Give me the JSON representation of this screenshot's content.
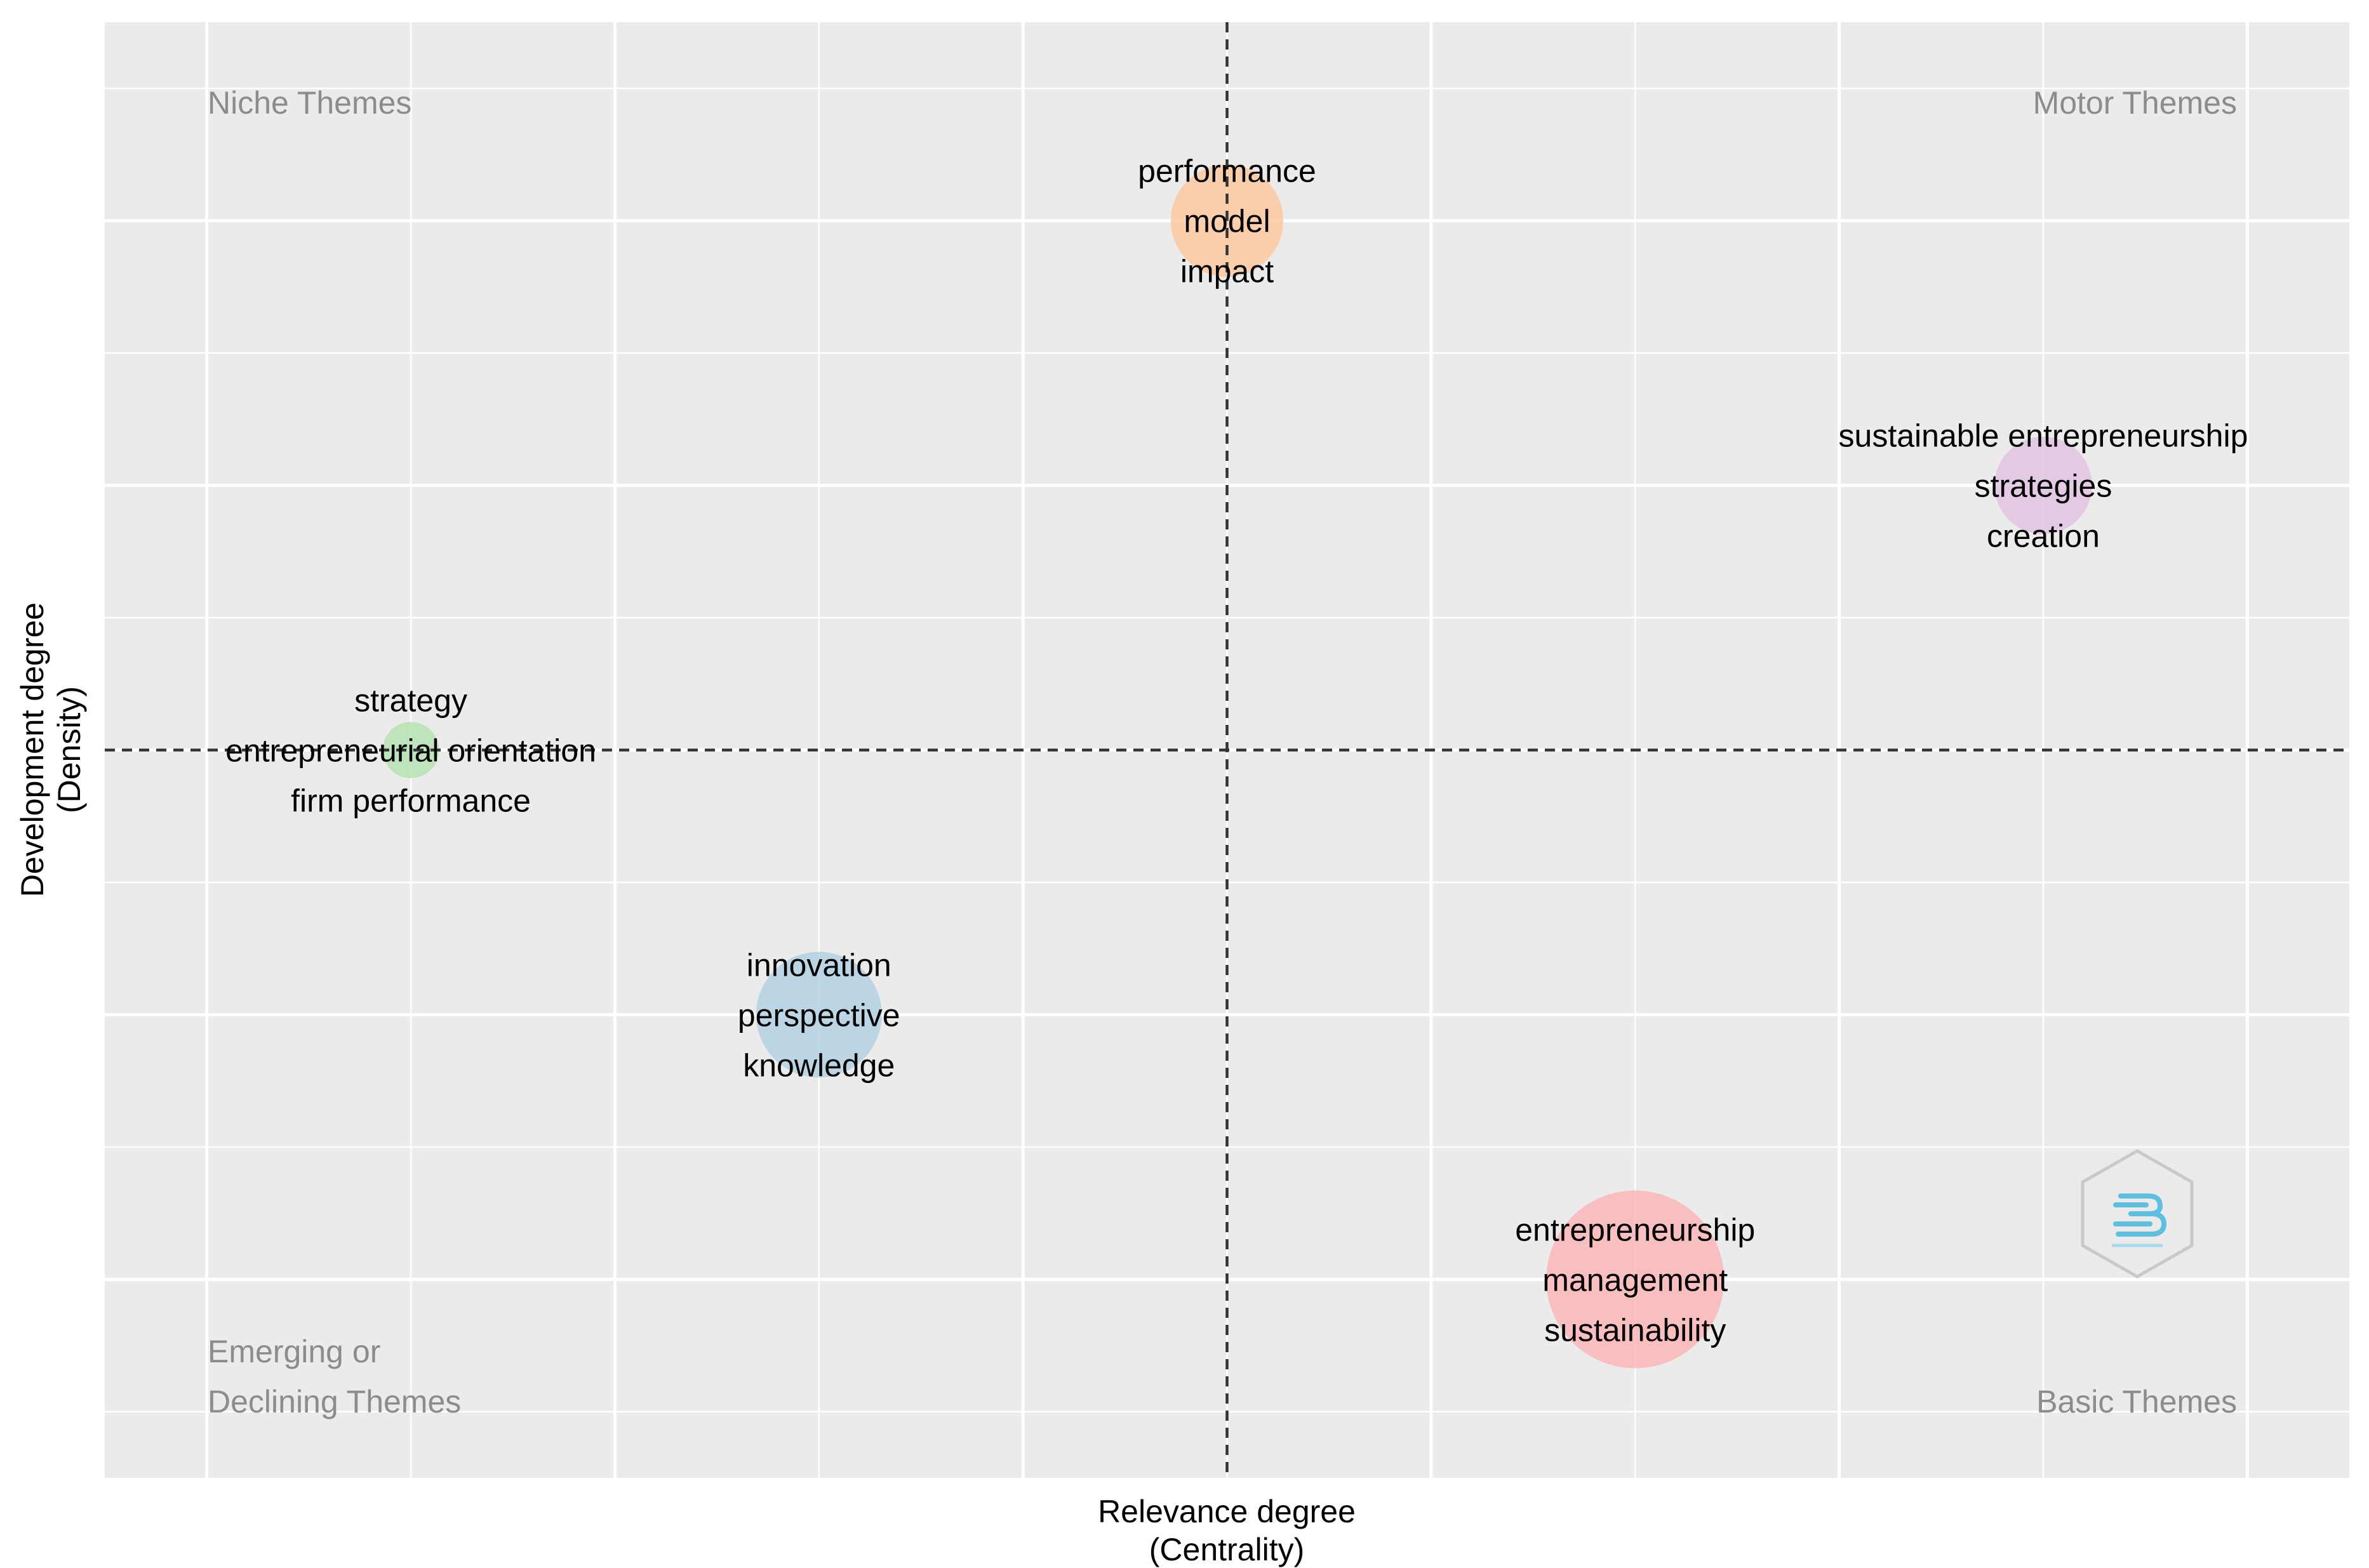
{
  "chart_data": {
    "type": "scatter",
    "title": "",
    "xlabel_lines": [
      "Relevance degree",
      "(Centrality)"
    ],
    "ylabel_lines": [
      "Development degree",
      "(Density)"
    ],
    "xlim": [
      -0.5,
      10.5
    ],
    "ylim": [
      -5.5,
      5.5
    ],
    "grid": true,
    "show_tick_labels": false,
    "ref_x": 5,
    "ref_y": 0,
    "quadrant_labels": {
      "top_left": [
        "Niche Themes"
      ],
      "top_right": [
        "Motor Themes"
      ],
      "bottom_left": [
        "Emerging or",
        "Declining Themes"
      ],
      "bottom_right": [
        "Basic Themes"
      ]
    },
    "clusters": [
      {
        "name": "performance",
        "x": 5,
        "y": 4,
        "size": 4,
        "color": "#fdc9a0",
        "labels": [
          "performance",
          "model",
          "impact"
        ]
      },
      {
        "name": "sustainable entrepreneurship",
        "x": 9,
        "y": 2,
        "size": 3,
        "color": "#e2c3e3",
        "labels": [
          "sustainable entrepreneurship",
          "strategies",
          "creation"
        ]
      },
      {
        "name": "strategy",
        "x": 1,
        "y": 0,
        "size": 1,
        "color": "#b5e3b1",
        "labels": [
          "strategy",
          "entrepreneurial orientation",
          "firm performance"
        ]
      },
      {
        "name": "innovation",
        "x": 3,
        "y": -2,
        "size": 5,
        "color": "#b4d1e3",
        "labels": [
          "innovation",
          "perspective",
          "knowledge"
        ]
      },
      {
        "name": "entrepreneurship",
        "x": 7,
        "y": -4,
        "size": 10,
        "color": "#fbb7b9",
        "labels": [
          "entrepreneurship",
          "management",
          "sustainability"
        ]
      }
    ]
  },
  "watermark": {
    "name": "bibliometrix-logo",
    "color": "#5fbfe0"
  }
}
